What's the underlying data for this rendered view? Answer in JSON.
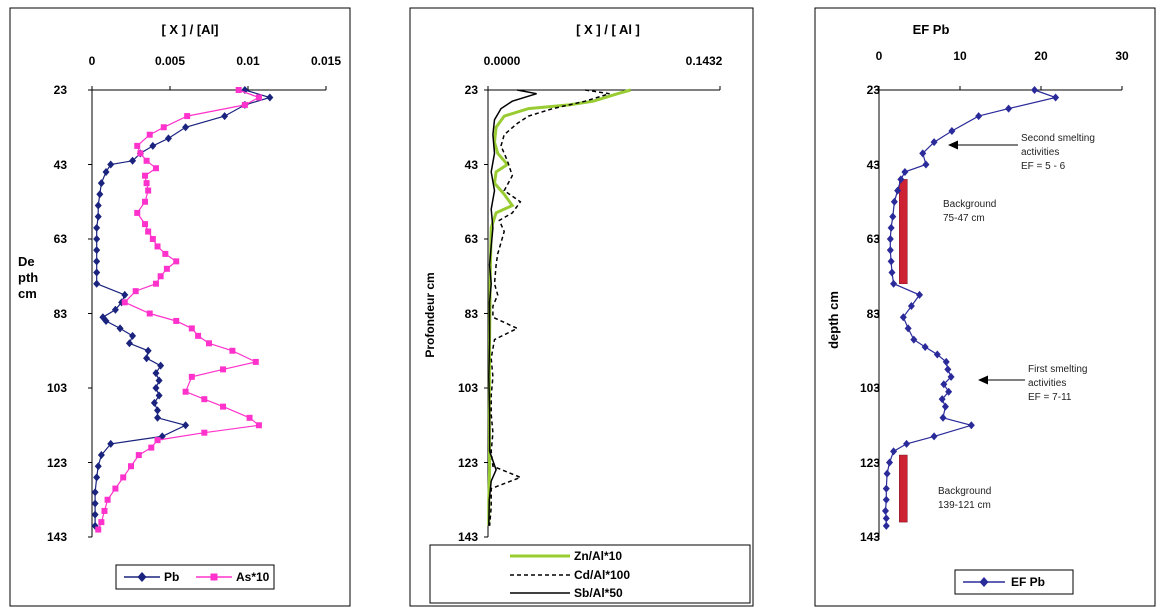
{
  "chart_data": [
    {
      "type": "line",
      "xlabel": "[ X ] / [Al]",
      "ylabel": "De pth cm",
      "ylabel_lines": [
        "De",
        "pth",
        "cm"
      ],
      "x_ticks": [
        "0",
        "0.005",
        "0.01",
        "0.015"
      ],
      "x_tick_values": [
        0,
        0.005,
        0.01,
        0.015
      ],
      "xlim": [
        0,
        0.015
      ],
      "y_ticks": [
        "23",
        "43",
        "63",
        "83",
        "103",
        "123",
        "143"
      ],
      "y_tick_values": [
        23,
        43,
        63,
        83,
        103,
        123,
        143
      ],
      "ylim": [
        23,
        143
      ],
      "y_inverted": true,
      "grid": false,
      "legend_position": "bottom",
      "series": [
        {
          "name": "Pb",
          "color": "#1a237e",
          "marker": "diamond",
          "points": [
            [
              0.0098,
              23
            ],
            [
              0.0114,
              25
            ],
            [
              0.0098,
              27
            ],
            [
              0.0085,
              30
            ],
            [
              0.006,
              33
            ],
            [
              0.0049,
              36
            ],
            [
              0.0039,
              38
            ],
            [
              0.0031,
              40
            ],
            [
              0.0026,
              42
            ],
            [
              0.0012,
              43
            ],
            [
              0.0009,
              45
            ],
            [
              0.0006,
              48
            ],
            [
              0.0005,
              51
            ],
            [
              0.0004,
              54
            ],
            [
              0.0004,
              57
            ],
            [
              0.0003,
              60
            ],
            [
              0.0003,
              63
            ],
            [
              0.0003,
              66
            ],
            [
              0.0003,
              69
            ],
            [
              0.0003,
              72
            ],
            [
              0.0003,
              75
            ],
            [
              0.0021,
              78
            ],
            [
              0.0019,
              80
            ],
            [
              0.0015,
              82
            ],
            [
              0.0007,
              84
            ],
            [
              0.0009,
              85
            ],
            [
              0.0018,
              87
            ],
            [
              0.0026,
              89
            ],
            [
              0.0024,
              91
            ],
            [
              0.0036,
              93
            ],
            [
              0.0035,
              95
            ],
            [
              0.0044,
              97
            ],
            [
              0.0041,
              99
            ],
            [
              0.0043,
              101
            ],
            [
              0.0041,
              103
            ],
            [
              0.0043,
              105
            ],
            [
              0.004,
              107
            ],
            [
              0.0042,
              109
            ],
            [
              0.0042,
              111
            ],
            [
              0.006,
              113
            ],
            [
              0.0045,
              116
            ],
            [
              0.0012,
              118
            ],
            [
              0.0006,
              121
            ],
            [
              0.0004,
              124
            ],
            [
              0.0003,
              127
            ],
            [
              0.0002,
              131
            ],
            [
              0.0002,
              134
            ],
            [
              0.0002,
              137
            ],
            [
              0.0002,
              140
            ]
          ]
        },
        {
          "name": "As*10",
          "color": "#ff33cc",
          "marker": "square",
          "points": [
            [
              0.0094,
              23
            ],
            [
              0.0107,
              25
            ],
            [
              0.0098,
              27
            ],
            [
              0.0061,
              30
            ],
            [
              0.0046,
              33
            ],
            [
              0.0037,
              35
            ],
            [
              0.0029,
              38
            ],
            [
              0.0031,
              40
            ],
            [
              0.0035,
              42
            ],
            [
              0.0041,
              44
            ],
            [
              0.0034,
              46
            ],
            [
              0.0035,
              48
            ],
            [
              0.0036,
              50
            ],
            [
              0.0034,
              53
            ],
            [
              0.0029,
              56
            ],
            [
              0.0034,
              59
            ],
            [
              0.0036,
              61
            ],
            [
              0.0039,
              63
            ],
            [
              0.0042,
              65
            ],
            [
              0.0047,
              67
            ],
            [
              0.0054,
              69
            ],
            [
              0.0048,
              71
            ],
            [
              0.0044,
              73
            ],
            [
              0.0041,
              75
            ],
            [
              0.0028,
              77
            ],
            [
              0.0021,
              80
            ],
            [
              0.0037,
              83
            ],
            [
              0.0054,
              85
            ],
            [
              0.0064,
              87
            ],
            [
              0.0068,
              89
            ],
            [
              0.0075,
              91
            ],
            [
              0.009,
              93
            ],
            [
              0.0105,
              96
            ],
            [
              0.0084,
              98
            ],
            [
              0.0064,
              100
            ],
            [
              0.006,
              104
            ],
            [
              0.0072,
              106
            ],
            [
              0.0084,
              108
            ],
            [
              0.0101,
              111
            ],
            [
              0.0107,
              113
            ],
            [
              0.0072,
              115
            ],
            [
              0.0042,
              117
            ],
            [
              0.0038,
              119
            ],
            [
              0.003,
              121
            ],
            [
              0.0025,
              124
            ],
            [
              0.002,
              127
            ],
            [
              0.0015,
              130
            ],
            [
              0.001,
              133
            ],
            [
              0.0008,
              136
            ],
            [
              0.0006,
              139
            ],
            [
              0.0004,
              141
            ]
          ]
        }
      ]
    },
    {
      "type": "line",
      "xlabel": "[ X ] / [ Al ]",
      "ylabel": "Profondeur cm",
      "x_ticks": [
        "0.0000",
        "0.1432"
      ],
      "x_tick_values": [
        0,
        0.1432
      ],
      "xlim": [
        0,
        0.1432
      ],
      "y_ticks": [
        "23",
        "43",
        "63",
        "83",
        "103",
        "123",
        "143"
      ],
      "y_tick_values": [
        23,
        43,
        63,
        83,
        103,
        123,
        143
      ],
      "ylim": [
        23,
        143
      ],
      "y_inverted": true,
      "grid": false,
      "legend_position": "bottom",
      "series": [
        {
          "name": "Zn/Al*10",
          "color": "#99cc33",
          "style": "solid",
          "width": 3,
          "points": [
            [
              0.088,
              23
            ],
            [
              0.08,
              24
            ],
            [
              0.065,
              26
            ],
            [
              0.05,
              27
            ],
            [
              0.025,
              28
            ],
            [
              0.01,
              30
            ],
            [
              0.005,
              33
            ],
            [
              0.004,
              37
            ],
            [
              0.006,
              40
            ],
            [
              0.012,
              43
            ],
            [
              0.005,
              45
            ],
            [
              0.004,
              48
            ],
            [
              0.01,
              51
            ],
            [
              0.015,
              54
            ],
            [
              0.005,
              56
            ],
            [
              0.002,
              60
            ],
            [
              0.0015,
              70
            ],
            [
              0.001,
              90
            ],
            [
              0.0008,
              110
            ],
            [
              0.001,
              125
            ],
            [
              0.0005,
              133
            ],
            [
              0.0005,
              140
            ]
          ]
        },
        {
          "name": "Cd/Al*100",
          "color": "#000000",
          "style": "dashed",
          "width": 1.5,
          "points": [
            [
              0.06,
              23
            ],
            [
              0.075,
              24
            ],
            [
              0.06,
              26
            ],
            [
              0.04,
              28
            ],
            [
              0.025,
              30
            ],
            [
              0.018,
              32
            ],
            [
              0.01,
              35
            ],
            [
              0.008,
              38
            ],
            [
              0.012,
              42
            ],
            [
              0.015,
              46
            ],
            [
              0.01,
              50
            ],
            [
              0.02,
              53
            ],
            [
              0.015,
              56
            ],
            [
              0.007,
              58
            ],
            [
              0.01,
              61
            ],
            [
              0.008,
              64
            ],
            [
              0.006,
              67
            ],
            [
              0.005,
              70
            ],
            [
              0.004,
              75
            ],
            [
              0.006,
              78
            ],
            [
              0.003,
              81
            ],
            [
              0.003,
              84
            ],
            [
              0.018,
              87
            ],
            [
              0.004,
              90
            ],
            [
              0.002,
              95
            ],
            [
              0.003,
              100
            ],
            [
              0.002,
              105
            ],
            [
              0.002,
              110
            ],
            [
              0.003,
              115
            ],
            [
              0.002,
              120
            ],
            [
              0.003,
              124
            ],
            [
              0.02,
              127
            ],
            [
              0.002,
              130
            ],
            [
              0.002,
              135
            ],
            [
              0.001,
              140
            ]
          ]
        },
        {
          "name": "Sb/Al*50",
          "color": "#000000",
          "style": "solid",
          "width": 1.5,
          "points": [
            [
              0.018,
              23
            ],
            [
              0.03,
              24
            ],
            [
              0.015,
              26
            ],
            [
              0.008,
              28
            ],
            [
              0.004,
              31
            ],
            [
              0.003,
              35
            ],
            [
              0.004,
              40
            ],
            [
              0.002,
              45
            ],
            [
              0.004,
              50
            ],
            [
              0.002,
              55
            ],
            [
              0.003,
              60
            ],
            [
              0.002,
              65
            ],
            [
              0.001,
              70
            ],
            [
              0.002,
              75
            ],
            [
              0.001,
              80
            ],
            [
              0.001,
              90
            ],
            [
              0.0005,
              100
            ],
            [
              0.001,
              110
            ],
            [
              0.001,
              120
            ],
            [
              0.005,
              125
            ],
            [
              0.002,
              128
            ],
            [
              0.0008,
              133
            ],
            [
              0.0005,
              140
            ]
          ]
        }
      ]
    },
    {
      "type": "line",
      "xlabel": "EF Pb",
      "ylabel": "depth cm",
      "x_ticks": [
        "0",
        "10",
        "20",
        "30"
      ],
      "x_tick_values": [
        0,
        10,
        20,
        30
      ],
      "xlim": [
        0,
        30
      ],
      "y_ticks": [
        "23",
        "43",
        "63",
        "83",
        "103",
        "123",
        "143"
      ],
      "y_tick_values": [
        23,
        43,
        63,
        83,
        103,
        123,
        143
      ],
      "ylim": [
        23,
        143
      ],
      "y_inverted": true,
      "grid": false,
      "legend_position": "bottom",
      "series": [
        {
          "name": "EF Pb",
          "color": "#2a2a9a",
          "marker": "diamond",
          "points": [
            [
              19.2,
              23
            ],
            [
              21.8,
              25
            ],
            [
              16,
              28
            ],
            [
              12.3,
              30
            ],
            [
              9,
              34
            ],
            [
              6.8,
              37
            ],
            [
              5.4,
              40
            ],
            [
              5.8,
              43
            ],
            [
              3.2,
              45
            ],
            [
              2.7,
              47
            ],
            [
              2.3,
              50
            ],
            [
              1.9,
              53
            ],
            [
              1.7,
              57
            ],
            [
              1.5,
              60
            ],
            [
              1.4,
              63
            ],
            [
              1.4,
              66
            ],
            [
              1.5,
              69
            ],
            [
              1.6,
              72
            ],
            [
              1.8,
              75
            ],
            [
              5,
              78
            ],
            [
              4,
              81
            ],
            [
              3,
              84
            ],
            [
              3.6,
              87
            ],
            [
              4.3,
              90
            ],
            [
              5.7,
              92
            ],
            [
              7.2,
              94
            ],
            [
              8.3,
              96
            ],
            [
              8.5,
              98
            ],
            [
              8.9,
              100
            ],
            [
              8,
              102
            ],
            [
              8.6,
              104
            ],
            [
              7.8,
              106
            ],
            [
              8.2,
              108
            ],
            [
              7.9,
              111
            ],
            [
              11.4,
              113
            ],
            [
              6.8,
              116
            ],
            [
              3.4,
              118
            ],
            [
              1.8,
              120
            ],
            [
              1.3,
              123
            ],
            [
              1,
              126
            ],
            [
              0.9,
              130
            ],
            [
              0.9,
              133
            ],
            [
              0.8,
              136
            ],
            [
              0.9,
              138
            ],
            [
              0.9,
              140
            ]
          ]
        }
      ],
      "annotations": [
        {
          "text_lines": [
            "Second smelting",
            "activities",
            "EF = 5 - 6"
          ],
          "target": [
            5.8,
            43
          ]
        },
        {
          "text_lines": [
            "First smelting",
            "activities",
            "EF = 7-11"
          ],
          "target": [
            8.6,
            104
          ]
        },
        {
          "text_lines": [
            "Background",
            "75-47 cm"
          ]
        },
        {
          "text_lines": [
            "Background",
            "139-121 cm"
          ]
        }
      ],
      "background_bars": [
        {
          "x": 3,
          "y_range": [
            47,
            75
          ],
          "color": "#cc2233"
        },
        {
          "x": 3,
          "y_range": [
            121,
            139
          ],
          "color": "#cc2233"
        }
      ]
    }
  ]
}
